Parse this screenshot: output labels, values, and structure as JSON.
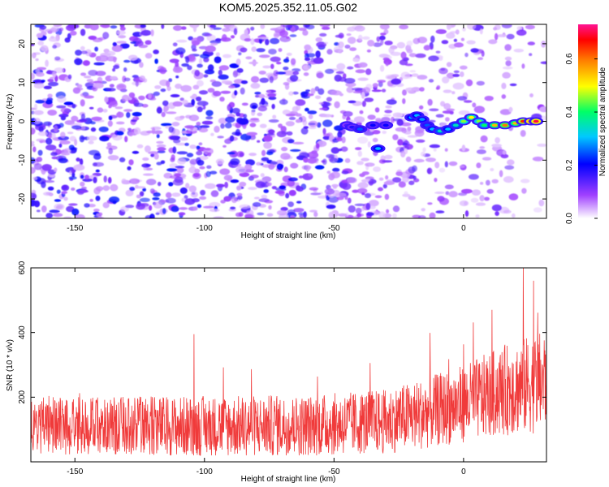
{
  "title": "KOM5.2025.352.11.05.G02",
  "chart_data": [
    {
      "type": "heatmap",
      "title": "KOM5.2025.352.11.05.G02",
      "xlabel": "Height of straight line (km)",
      "ylabel": "Frequency (Hz)",
      "xlim": [
        -167,
        32
      ],
      "ylim": [
        -25,
        25
      ],
      "xticks": [
        -150,
        -100,
        -50,
        0
      ],
      "yticks": [
        -20,
        -10,
        0,
        10,
        20
      ],
      "colorbar": {
        "label": "Normalized spectral amplitude",
        "range": [
          0,
          0.73
        ],
        "ticks": [
          "0.0",
          "0.2",
          "0.4",
          "0.6"
        ],
        "tick_values": [
          0,
          0.2,
          0.4,
          0.6
        ]
      },
      "ridge": [
        {
          "x": -45,
          "y": -1,
          "v": 0.15
        },
        {
          "x": -43,
          "y": -1.5,
          "v": 0.18
        },
        {
          "x": -40,
          "y": -2,
          "v": 0.25
        },
        {
          "x": -35,
          "y": -1,
          "v": 0.2
        },
        {
          "x": -33,
          "y": -7,
          "v": 0.3
        },
        {
          "x": -30,
          "y": -1,
          "v": 0.2
        },
        {
          "x": -20,
          "y": 1,
          "v": 0.3
        },
        {
          "x": -18,
          "y": 1.5,
          "v": 0.3
        },
        {
          "x": -16,
          "y": 0.5,
          "v": 0.28
        },
        {
          "x": -14,
          "y": -1,
          "v": 0.25
        },
        {
          "x": -12,
          "y": -2,
          "v": 0.3
        },
        {
          "x": -9,
          "y": -2.5,
          "v": 0.35
        },
        {
          "x": -6,
          "y": -2,
          "v": 0.3
        },
        {
          "x": -3,
          "y": -1,
          "v": 0.35
        },
        {
          "x": 0,
          "y": 0,
          "v": 0.45
        },
        {
          "x": 3,
          "y": 1,
          "v": 0.5
        },
        {
          "x": 6,
          "y": 0,
          "v": 0.45
        },
        {
          "x": 8,
          "y": -1,
          "v": 0.4
        },
        {
          "x": 12,
          "y": -1,
          "v": 0.55
        },
        {
          "x": 16,
          "y": -1,
          "v": 0.6
        },
        {
          "x": 20,
          "y": -0.5,
          "v": 0.55
        },
        {
          "x": 23,
          "y": 0,
          "v": 0.65
        },
        {
          "x": 26,
          "y": 0,
          "v": 0.73
        },
        {
          "x": 28,
          "y": 0,
          "v": 0.7
        }
      ]
    },
    {
      "type": "line",
      "xlabel": "Height of straight line (km)",
      "ylabel": "SNR (10 * v/v)",
      "xlim": [
        -167,
        32
      ],
      "ylim": [
        0,
        600
      ],
      "xticks": [
        -150,
        -100,
        -50,
        0
      ],
      "yticks": [
        200,
        400,
        600
      ],
      "color": "#f03a3a",
      "trend": [
        {
          "x": -167,
          "mean": 115,
          "spread": 90
        },
        {
          "x": -140,
          "mean": 110,
          "spread": 90
        },
        {
          "x": -100,
          "mean": 110,
          "spread": 95
        },
        {
          "x": -60,
          "mean": 112,
          "spread": 95
        },
        {
          "x": -30,
          "mean": 125,
          "spread": 100
        },
        {
          "x": -15,
          "mean": 150,
          "spread": 110
        },
        {
          "x": 0,
          "mean": 180,
          "spread": 120
        },
        {
          "x": 15,
          "mean": 220,
          "spread": 140
        },
        {
          "x": 32,
          "mean": 250,
          "spread": 160
        }
      ],
      "peaks": [
        {
          "x": -104,
          "y": 395
        },
        {
          "x": 23,
          "y": 600
        },
        {
          "x": 27,
          "y": 560
        },
        {
          "x": 11,
          "y": 470
        }
      ]
    }
  ]
}
